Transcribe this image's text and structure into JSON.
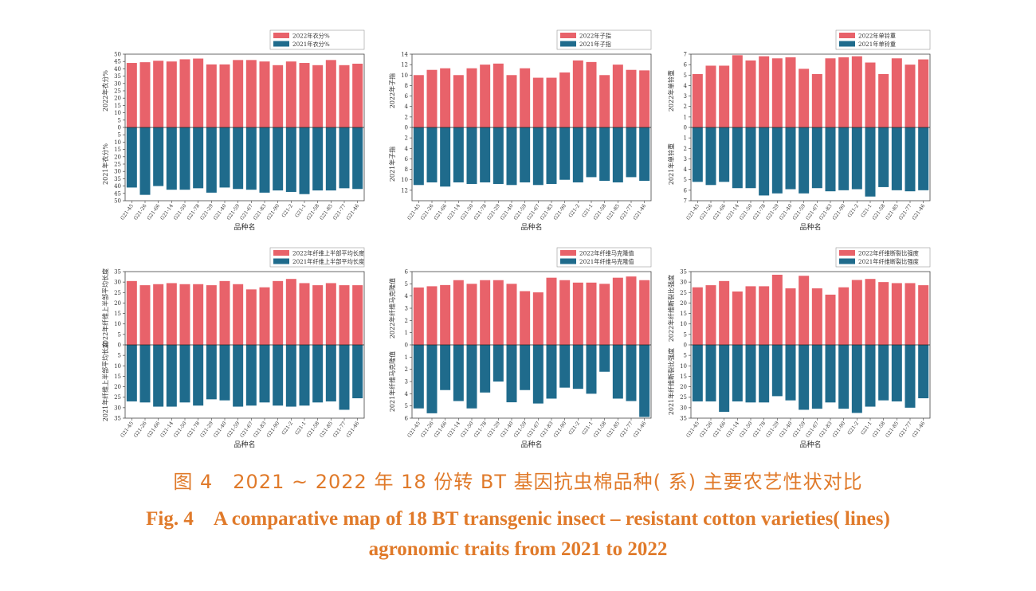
{
  "colors": {
    "y2022": "#e8626a",
    "y2021": "#1f6b8c",
    "caption": "#e07a2a"
  },
  "chart_data": [
    {
      "type": "bar",
      "id": "lint-percentage",
      "categories": [
        "G21-45",
        "G21-26",
        "G21-66",
        "G21-14",
        "G21-50",
        "G21-78",
        "G21-29",
        "G21-40",
        "G21-59",
        "G21-67",
        "G21-83",
        "G21-90",
        "G21-2",
        "G21-1",
        "G21-58",
        "G21-85",
        "G21-77",
        "G21-46"
      ],
      "series": [
        {
          "name": "2022年衣分%",
          "values": [
            44,
            44.5,
            45.5,
            45,
            46.5,
            47,
            43,
            43,
            46,
            46,
            45,
            42.5,
            45,
            44,
            42.5,
            46,
            42.5,
            43.5
          ]
        },
        {
          "name": "2021年衣分%",
          "values": [
            41,
            46,
            40,
            42.5,
            42.5,
            41.5,
            44.5,
            41,
            42,
            42.5,
            44.5,
            43,
            44,
            45.5,
            43,
            43,
            41.5,
            42
          ]
        }
      ],
      "ylabel_top": "2022年衣分%",
      "ylabel_bottom": "2021年衣分%",
      "xlabel": "品种名",
      "ylim": [
        0,
        50
      ],
      "ticks": [
        0,
        5,
        10,
        15,
        20,
        25,
        30,
        35,
        40,
        45,
        50
      ],
      "legend": "top-right"
    },
    {
      "type": "bar",
      "id": "seed-index",
      "categories": [
        "G21-45",
        "G21-26",
        "G21-66",
        "G21-14",
        "G21-50",
        "G21-78",
        "G21-29",
        "G21-40",
        "G21-59",
        "G21-67",
        "G21-83",
        "G21-90",
        "G21-2",
        "G21-1",
        "G21-58",
        "G21-85",
        "G21-77",
        "G21-46"
      ],
      "series": [
        {
          "name": "2022年子指",
          "values": [
            10,
            11,
            11.3,
            10,
            11.3,
            12,
            12.2,
            10,
            11.3,
            9.5,
            9.5,
            10.5,
            12.8,
            12.5,
            10,
            12,
            11,
            10.9
          ]
        },
        {
          "name": "2021年子指",
          "values": [
            11,
            10.5,
            11.3,
            10.5,
            10.8,
            10.5,
            10.8,
            11,
            10.5,
            11,
            10.8,
            10,
            10.5,
            9.5,
            10.2,
            10.5,
            9.5,
            10.2
          ]
        }
      ],
      "ylabel_top": "2022年子指",
      "ylabel_bottom": "2021年子指",
      "xlabel": "品种名",
      "ylim": [
        0,
        14
      ],
      "ticks_top": [
        0,
        2,
        4,
        6,
        8,
        10,
        12,
        14
      ],
      "ticks_bottom": [
        0,
        2,
        4,
        6,
        8,
        10,
        12
      ],
      "legend": "top-right"
    },
    {
      "type": "bar",
      "id": "boll-weight",
      "categories": [
        "G21-45",
        "G21-26",
        "G21-66",
        "G21-14",
        "G21-50",
        "G21-78",
        "G21-29",
        "G21-40",
        "G21-59",
        "G21-67",
        "G21-83",
        "G21-90",
        "G21-2",
        "G21-1",
        "G21-58",
        "G21-85",
        "G21-77",
        "G21-46"
      ],
      "series": [
        {
          "name": "2022年单铃重",
          "values": [
            5.1,
            5.9,
            5.9,
            6.9,
            6.4,
            6.8,
            6.6,
            6.7,
            5.6,
            5.1,
            6.6,
            6.7,
            6.8,
            6.2,
            5.1,
            6.6,
            6.0,
            6.5
          ]
        },
        {
          "name": "2021年单铃重",
          "values": [
            5.2,
            5.5,
            5.2,
            5.8,
            5.8,
            6.5,
            6.3,
            5.9,
            6.3,
            5.8,
            6.1,
            6.0,
            5.9,
            6.6,
            5.7,
            6.0,
            6.1,
            6.0
          ]
        }
      ],
      "ylabel_top": "2022年单铃重",
      "ylabel_bottom": "2021年单铃重",
      "xlabel": "品种名",
      "ylim": [
        0,
        7
      ],
      "ticks": [
        0,
        1,
        2,
        3,
        4,
        5,
        6,
        7
      ],
      "legend": "top-right"
    },
    {
      "type": "bar",
      "id": "fiber-length",
      "categories": [
        "G21-45",
        "G21-26",
        "G21-66",
        "G21-14",
        "G21-50",
        "G21-78",
        "G21-29",
        "G21-40",
        "G21-59",
        "G21-67",
        "G21-83",
        "G21-90",
        "G21-2",
        "G21-1",
        "G21-58",
        "G21-85",
        "G21-77",
        "G21-46"
      ],
      "series": [
        {
          "name": "2022年纤维上半部平均长度",
          "values": [
            30.5,
            28.5,
            29,
            29.5,
            29,
            29,
            28.5,
            30.5,
            29,
            26.5,
            27.5,
            30.5,
            31.5,
            29.5,
            28.5,
            29.5,
            28.5,
            28.5
          ]
        },
        {
          "name": "2021年纤维上半部平均长度",
          "values": [
            27,
            27.5,
            29.5,
            29.5,
            27.5,
            29,
            26,
            26.5,
            29.5,
            29,
            27.5,
            29,
            29.5,
            29,
            27.5,
            27,
            31,
            25.5
          ]
        }
      ],
      "ylabel_top": "2022年纤维上半部平均长度",
      "ylabel_bottom": "2021年纤维上半部平均长度",
      "xlabel": "品种名",
      "ylim": [
        0,
        35
      ],
      "ticks": [
        0,
        5,
        10,
        15,
        20,
        25,
        30,
        35
      ],
      "legend": "top-right"
    },
    {
      "type": "bar",
      "id": "micronaire",
      "categories": [
        "G21-45",
        "G21-26",
        "G21-66",
        "G21-14",
        "G21-50",
        "G21-78",
        "G21-29",
        "G21-40",
        "G21-59",
        "G21-67",
        "G21-83",
        "G21-90",
        "G21-2",
        "G21-1",
        "G21-58",
        "G21-85",
        "G21-77",
        "G21-46"
      ],
      "series": [
        {
          "name": "2022年纤维马克隆值",
          "values": [
            4.7,
            4.8,
            4.9,
            5.3,
            5.0,
            5.3,
            5.3,
            5.0,
            4.4,
            4.3,
            5.5,
            5.3,
            5.1,
            5.1,
            5.0,
            5.5,
            5.6,
            5.3
          ]
        },
        {
          "name": "2021年纤维马克隆值",
          "values": [
            5.2,
            5.6,
            3.7,
            4.6,
            5.2,
            3.9,
            3.0,
            4.7,
            3.7,
            4.8,
            4.4,
            3.5,
            3.6,
            4.0,
            2.2,
            4.4,
            4.6,
            5.9
          ]
        }
      ],
      "ylabel_top": "2022年纤维马克隆值",
      "ylabel_bottom": "2021年纤维马克隆值",
      "xlabel": "品种名",
      "ylim": [
        0,
        6
      ],
      "ticks": [
        0,
        1,
        2,
        3,
        4,
        5,
        6
      ],
      "legend": "top-right"
    },
    {
      "type": "bar",
      "id": "fiber-strength",
      "categories": [
        "G21-45",
        "G21-26",
        "G21-66",
        "G21-14",
        "G21-50",
        "G21-78",
        "G21-29",
        "G21-40",
        "G21-59",
        "G21-67",
        "G21-83",
        "G21-90",
        "G21-2",
        "G21-1",
        "G21-58",
        "G21-85",
        "G21-77",
        "G21-46"
      ],
      "series": [
        {
          "name": "2022年纤维断裂比强度",
          "values": [
            27.5,
            28.5,
            30.5,
            25.5,
            28,
            28,
            33.5,
            27,
            33,
            27,
            24,
            27.5,
            31,
            31.5,
            30,
            29.5,
            29.5,
            28.5
          ]
        },
        {
          "name": "2021年纤维断裂比强度",
          "values": [
            27,
            27,
            32,
            27,
            27.5,
            27.5,
            24.5,
            26.5,
            31,
            30.5,
            27.5,
            30.5,
            32.5,
            29.5,
            26.5,
            27,
            30,
            25.5
          ]
        }
      ],
      "ylabel_top": "2022年纤维断裂比强度",
      "ylabel_bottom": "2021年纤维断裂比强度",
      "xlabel": "品种名",
      "ylim": [
        0,
        35
      ],
      "ticks": [
        0,
        5,
        10,
        15,
        20,
        25,
        30,
        35
      ],
      "legend": "top-right"
    }
  ],
  "caption": {
    "cn": "图 4　2021 ~ 2022 年 18 份转 BT 基因抗虫棉品种( 系) 主要农艺性状对比",
    "en_line1": "Fig. 4　A comparative map of 18 BT transgenic insect – resistant cotton varieties( lines)",
    "en_line2": "agronomic traits from 2021 to 2022"
  }
}
